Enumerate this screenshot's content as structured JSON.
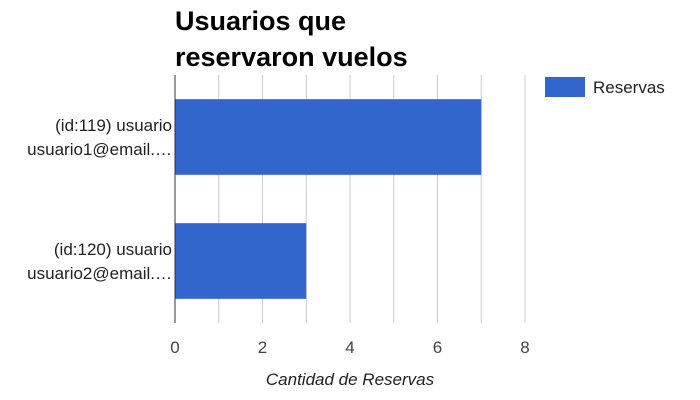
{
  "chart_data": {
    "type": "bar",
    "orientation": "horizontal",
    "title_lines": [
      "Usuarios que",
      "reservaron vuelos"
    ],
    "categories": [
      [
        "(id:119) usuario",
        "usuario1@email.…"
      ],
      [
        "(id:120) usuario",
        "usuario2@email.…"
      ]
    ],
    "series": [
      {
        "name": "Reservas",
        "values": [
          7,
          3
        ],
        "color": "#3366cc"
      }
    ],
    "xlabel": "Cantidad de Reservas",
    "ylabel": "",
    "xlim": [
      0,
      8
    ],
    "xticks": [
      0,
      2,
      4,
      6,
      8
    ],
    "grid": true,
    "legend_position": "top-right"
  }
}
